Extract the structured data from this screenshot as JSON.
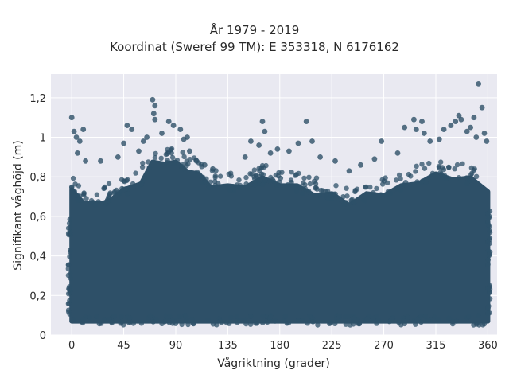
{
  "chart_data": {
    "type": "scatter",
    "title": "År 1979 - 2019",
    "subtitle": "Koordinat (Sweref 99 TM): E 353318, N 6176162",
    "xlabel": "Vågriktning (grader)",
    "ylabel": "Signifikant våghöjd (m)",
    "xlim": [
      -18,
      368
    ],
    "ylim": [
      0,
      1.32
    ],
    "xticks": [
      0,
      45,
      90,
      135,
      180,
      225,
      270,
      315,
      360
    ],
    "xtick_labels": [
      "0",
      "45",
      "90",
      "135",
      "180",
      "225",
      "270",
      "315",
      "360"
    ],
    "yticks": [
      0,
      0.2,
      0.4,
      0.6,
      0.8,
      1,
      1.2
    ],
    "ytick_labels": [
      "0",
      "0,2",
      "0,4",
      "0,6",
      "0,8",
      "1",
      "1,2"
    ],
    "grid": true,
    "marker_color": "#2e5068",
    "background": "#e9e9f1",
    "dense_band": {
      "description": "very dense cloud of points from about 0.07 to 0.6 m across all directions",
      "x_range": [
        0,
        360
      ],
      "y_lower": 0.07,
      "y_upper_envelope": [
        [
          0,
          0.72
        ],
        [
          10,
          0.68
        ],
        [
          20,
          0.65
        ],
        [
          30,
          0.68
        ],
        [
          45,
          0.72
        ],
        [
          60,
          0.78
        ],
        [
          70,
          0.86
        ],
        [
          80,
          0.88
        ],
        [
          90,
          0.86
        ],
        [
          100,
          0.84
        ],
        [
          110,
          0.8
        ],
        [
          120,
          0.76
        ],
        [
          135,
          0.74
        ],
        [
          150,
          0.76
        ],
        [
          165,
          0.78
        ],
        [
          180,
          0.77
        ],
        [
          195,
          0.74
        ],
        [
          210,
          0.72
        ],
        [
          225,
          0.7
        ],
        [
          240,
          0.67
        ],
        [
          255,
          0.7
        ],
        [
          270,
          0.72
        ],
        [
          285,
          0.74
        ],
        [
          300,
          0.78
        ],
        [
          315,
          0.8
        ],
        [
          330,
          0.8
        ],
        [
          345,
          0.78
        ],
        [
          360,
          0.74
        ]
      ]
    },
    "outliers": [
      {
        "x": 0,
        "y": 1.1
      },
      {
        "x": 2,
        "y": 1.03
      },
      {
        "x": 4,
        "y": 1.0
      },
      {
        "x": 7,
        "y": 0.98
      },
      {
        "x": 10,
        "y": 1.04
      },
      {
        "x": 5,
        "y": 0.92
      },
      {
        "x": 12,
        "y": 0.88
      },
      {
        "x": 25,
        "y": 0.88
      },
      {
        "x": 40,
        "y": 0.9
      },
      {
        "x": 45,
        "y": 0.97
      },
      {
        "x": 48,
        "y": 1.06
      },
      {
        "x": 52,
        "y": 1.04
      },
      {
        "x": 58,
        "y": 0.93
      },
      {
        "x": 62,
        "y": 0.98
      },
      {
        "x": 65,
        "y": 1.0
      },
      {
        "x": 70,
        "y": 1.19
      },
      {
        "x": 72,
        "y": 1.16
      },
      {
        "x": 71,
        "y": 1.12
      },
      {
        "x": 72,
        "y": 1.09
      },
      {
        "x": 78,
        "y": 1.02
      },
      {
        "x": 84,
        "y": 1.08
      },
      {
        "x": 88,
        "y": 1.06
      },
      {
        "x": 94,
        "y": 1.04
      },
      {
        "x": 97,
        "y": 0.99
      },
      {
        "x": 100,
        "y": 1.0
      },
      {
        "x": 102,
        "y": 0.93
      },
      {
        "x": 108,
        "y": 0.88
      },
      {
        "x": 115,
        "y": 0.86
      },
      {
        "x": 122,
        "y": 0.84
      },
      {
        "x": 150,
        "y": 0.9
      },
      {
        "x": 155,
        "y": 0.98
      },
      {
        "x": 162,
        "y": 0.96
      },
      {
        "x": 165,
        "y": 1.08
      },
      {
        "x": 167,
        "y": 1.03
      },
      {
        "x": 172,
        "y": 0.92
      },
      {
        "x": 178,
        "y": 0.94
      },
      {
        "x": 188,
        "y": 0.93
      },
      {
        "x": 196,
        "y": 0.97
      },
      {
        "x": 203,
        "y": 1.08
      },
      {
        "x": 208,
        "y": 0.98
      },
      {
        "x": 215,
        "y": 0.9
      },
      {
        "x": 228,
        "y": 0.88
      },
      {
        "x": 240,
        "y": 0.83
      },
      {
        "x": 250,
        "y": 0.86
      },
      {
        "x": 262,
        "y": 0.89
      },
      {
        "x": 268,
        "y": 0.98
      },
      {
        "x": 282,
        "y": 0.92
      },
      {
        "x": 288,
        "y": 1.05
      },
      {
        "x": 296,
        "y": 1.09
      },
      {
        "x": 298,
        "y": 1.04
      },
      {
        "x": 303,
        "y": 1.08
      },
      {
        "x": 305,
        "y": 1.02
      },
      {
        "x": 310,
        "y": 0.98
      },
      {
        "x": 318,
        "y": 0.99
      },
      {
        "x": 322,
        "y": 1.04
      },
      {
        "x": 328,
        "y": 1.06
      },
      {
        "x": 332,
        "y": 1.08
      },
      {
        "x": 335,
        "y": 1.11
      },
      {
        "x": 337,
        "y": 1.09
      },
      {
        "x": 342,
        "y": 1.03
      },
      {
        "x": 345,
        "y": 1.05
      },
      {
        "x": 348,
        "y": 1.1
      },
      {
        "x": 350,
        "y": 1.0
      },
      {
        "x": 352,
        "y": 1.27
      },
      {
        "x": 355,
        "y": 1.15
      },
      {
        "x": 357,
        "y": 1.02
      },
      {
        "x": 359,
        "y": 0.98
      }
    ]
  }
}
